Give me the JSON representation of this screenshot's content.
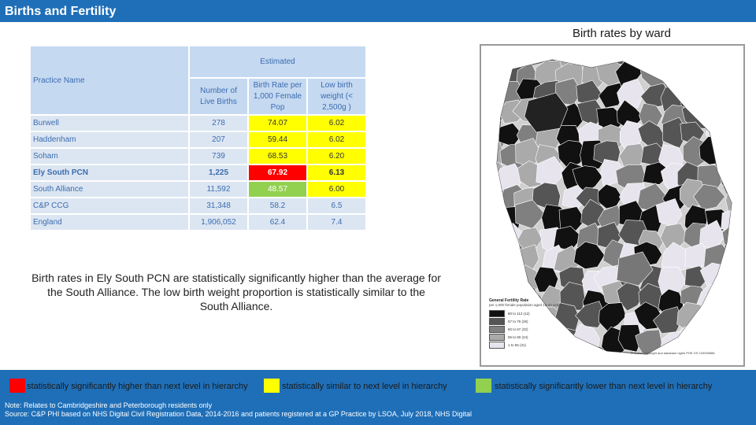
{
  "header": {
    "title": "Births and Fertility"
  },
  "map": {
    "caption": "Birth rates by ward",
    "legend": {
      "title": "General Fertility Rate",
      "subtitle": "per 1,000 female population aged 15-44 years",
      "items": [
        {
          "label": "80 to 113 (12)",
          "color": "#111111"
        },
        {
          "label": "67 to 76 (26)",
          "color": "#555555"
        },
        {
          "label": "60 to 67 (32)",
          "color": "#808080"
        },
        {
          "label": "55 to 60 (24)",
          "color": "#aaaaaa"
        },
        {
          "label": "1 to 55 (31)",
          "color": "#e8e4ee"
        }
      ]
    },
    "credit": "© Crown copyright and database rights PHE OS 100059886"
  },
  "table": {
    "headers": {
      "practice_name": "Practice Name",
      "estimated": "Estimated",
      "live_births": "Number of Live Births",
      "birth_rate": "Birth Rate per 1,000 Female Pop",
      "low_birth_weight": "Low birth weight (< 2,500g )"
    },
    "rows": [
      {
        "name": "Burwell",
        "births": "278",
        "rate": "74.07",
        "lbw": "6.02",
        "rate_color": "yellow",
        "lbw_color": "yellow",
        "bold": false
      },
      {
        "name": "Haddenham",
        "births": "207",
        "rate": "59.44",
        "lbw": "6.02",
        "rate_color": "yellow",
        "lbw_color": "yellow",
        "bold": false
      },
      {
        "name": "Soham",
        "births": "739",
        "rate": "68.53",
        "lbw": "6.20",
        "rate_color": "yellow",
        "lbw_color": "yellow",
        "bold": false
      },
      {
        "name": "Ely South PCN",
        "births": "1,225",
        "rate": "67.92",
        "lbw": "6.13",
        "rate_color": "red",
        "lbw_color": "yellow",
        "bold": true
      },
      {
        "name": "South Alliance",
        "births": "11,592",
        "rate": "48.57",
        "lbw": "6.00",
        "rate_color": "green",
        "lbw_color": "yellow",
        "bold": false
      },
      {
        "name": "C&P CCG",
        "births": "31,348",
        "rate": "58.2",
        "lbw": "6.5",
        "rate_color": "",
        "lbw_color": "",
        "bold": false
      },
      {
        "name": "England",
        "births": "1,906,052",
        "rate": "62.4",
        "lbw": "7.4",
        "rate_color": "",
        "lbw_color": "",
        "bold": false
      }
    ]
  },
  "summary": "Birth rates in Ely South PCN are statistically significantly higher than the average for the South Alliance.  The low birth weight proportion is statistically similar to the South Alliance.",
  "key": {
    "red": {
      "label": "statistically significantly higher than next level in hierarchy",
      "color": "#ff0000"
    },
    "yellow": {
      "label": "statistically similar to next level in hierarchy",
      "color": "#ffff00"
    },
    "green": {
      "label": "statistically significantly lower than next level in hierarchy",
      "color": "#92d050"
    }
  },
  "notes": {
    "note": "Note:  Relates to Cambridgeshire and Peterborough residents only",
    "source": "Source: C&P PHI based on NHS Digital Civil Registration Data, 2014-2016 and patients registered at a GP Practice by LSOA, July 2018, NHS Digital"
  }
}
